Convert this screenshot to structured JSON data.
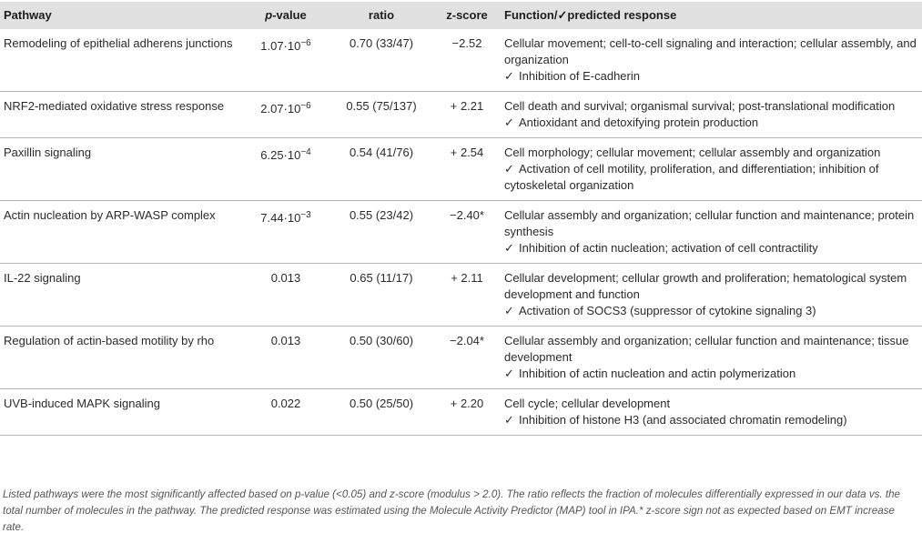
{
  "header": {
    "pathway": "Pathway",
    "pvalue_italic": "p",
    "pvalue_suffix": "-value",
    "ratio": "ratio",
    "zscore": "z-score",
    "function": "Function/✓predicted response"
  },
  "rows": [
    {
      "pathway": "Remodeling of epithelial adherens junctions",
      "pvalue_base": "1.07·10",
      "pvalue_exp": "−6",
      "ratio": "0.70 (33/47)",
      "zscore": "−2.52",
      "function": "Cellular movement; cell-to-cell signaling and interaction; cellular assembly, and organization",
      "check": "✓",
      "response": "Inhibition of E-cadherin"
    },
    {
      "pathway": "NRF2-mediated oxidative stress response",
      "pvalue_base": "2.07·10",
      "pvalue_exp": "−6",
      "ratio": "0.55 (75/137)",
      "zscore": "+ 2.21",
      "function": "Cell death and survival; organismal survival; post-translational modification",
      "check": "✓",
      "response": "Antioxidant and detoxifying protein production"
    },
    {
      "pathway": "Paxillin signaling",
      "pvalue_base": "6.25·10",
      "pvalue_exp": "−4",
      "ratio": "0.54 (41/76)",
      "zscore": "+ 2.54",
      "function": "Cell morphology; cellular movement; cellular assembly and organization",
      "check": "✓",
      "response": "Activation of cell motility, proliferation, and differentiation; inhibition of cytoskeletal organization"
    },
    {
      "pathway": "Actin nucleation by ARP-WASP complex",
      "pvalue_base": "7.44·10",
      "pvalue_exp": "−3",
      "ratio": "0.55 (23/42)",
      "zscore": "−2.40*",
      "function": "Cellular assembly and organization; cellular function and maintenance; protein synthesis",
      "check": "✓",
      "response": "Inhibition of actin nucleation; activation of cell contractility"
    },
    {
      "pathway": "IL-22 signaling",
      "pvalue_base": "0.013",
      "pvalue_exp": "",
      "ratio": "0.65 (11/17)",
      "zscore": "+ 2.11",
      "function": "Cellular development; cellular growth and proliferation; hematological system development and function",
      "check": "✓",
      "response": "Activation of SOCS3 (suppressor of cytokine signaling 3)"
    },
    {
      "pathway": "Regulation of actin-based motility by rho",
      "pvalue_base": "0.013",
      "pvalue_exp": "",
      "ratio": "0.50 (30/60)",
      "zscore": "−2.04*",
      "function": "Cellular assembly and organization; cellular function and maintenance; tissue development",
      "check": "✓",
      "response": "Inhibition of actin nucleation and actin polymerization"
    },
    {
      "pathway": "UVB-induced MAPK signaling",
      "pvalue_base": "0.022",
      "pvalue_exp": "",
      "ratio": "0.50 (25/50)",
      "zscore": "+ 2.20",
      "function": "Cell cycle; cellular development",
      "check": "✓",
      "response": "Inhibition of histone H3 (and associated chromatin remodeling)"
    }
  ],
  "footnote": "Listed pathways were the most significantly affected based on p-value (<0.05) and z-score (modulus > 2.0). The ratio reflects the fraction of molecules differentially expressed in our data vs. the total number of molecules in the pathway. The predicted response was estimated using the Molecule Activity Predictor (MAP) tool in IPA.* z-score sign not as expected based on EMT increase rate."
}
